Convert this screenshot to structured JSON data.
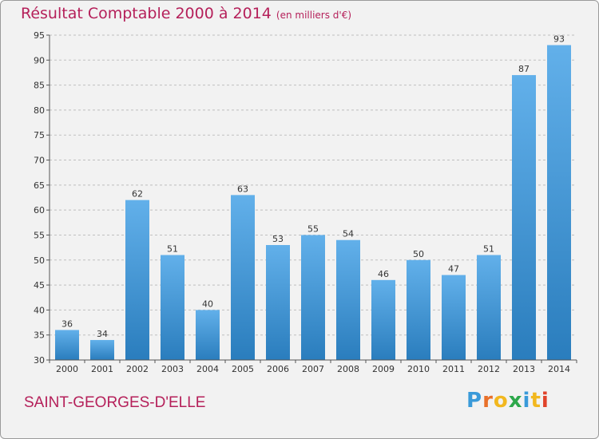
{
  "title": "Résultat Comptable 2000 à 2014",
  "subtitle": "(en milliers d'€)",
  "commune": "SAINT-GEORGES-D'ELLE",
  "logo": {
    "text": "Proxiti",
    "letter_colors": [
      "#3a9ad9",
      "#e8702a",
      "#f2b81f",
      "#2da84b",
      "#3a9ad9",
      "#f2b81f",
      "#e0432b"
    ]
  },
  "colors": {
    "bar_light": "#62b0ea",
    "bar_dark": "#2a7dbd",
    "title": "#b5205a",
    "axis_text": "#333333",
    "grid": "#bfbfbf",
    "background": "#f2f2f2"
  },
  "chart_data": {
    "type": "bar",
    "categories": [
      "2000",
      "2001",
      "2002",
      "2003",
      "2004",
      "2005",
      "2006",
      "2007",
      "2008",
      "2009",
      "2010",
      "2011",
      "2012",
      "2013",
      "2014"
    ],
    "values": [
      36,
      34,
      62,
      51,
      40,
      63,
      53,
      55,
      54,
      46,
      50,
      47,
      51,
      87,
      93
    ],
    "ylim": [
      30,
      95
    ],
    "yticks": [
      30,
      35,
      40,
      45,
      50,
      55,
      60,
      65,
      70,
      75,
      80,
      85,
      90,
      95
    ],
    "grid": "horizontal dashed",
    "data_labels": true
  }
}
